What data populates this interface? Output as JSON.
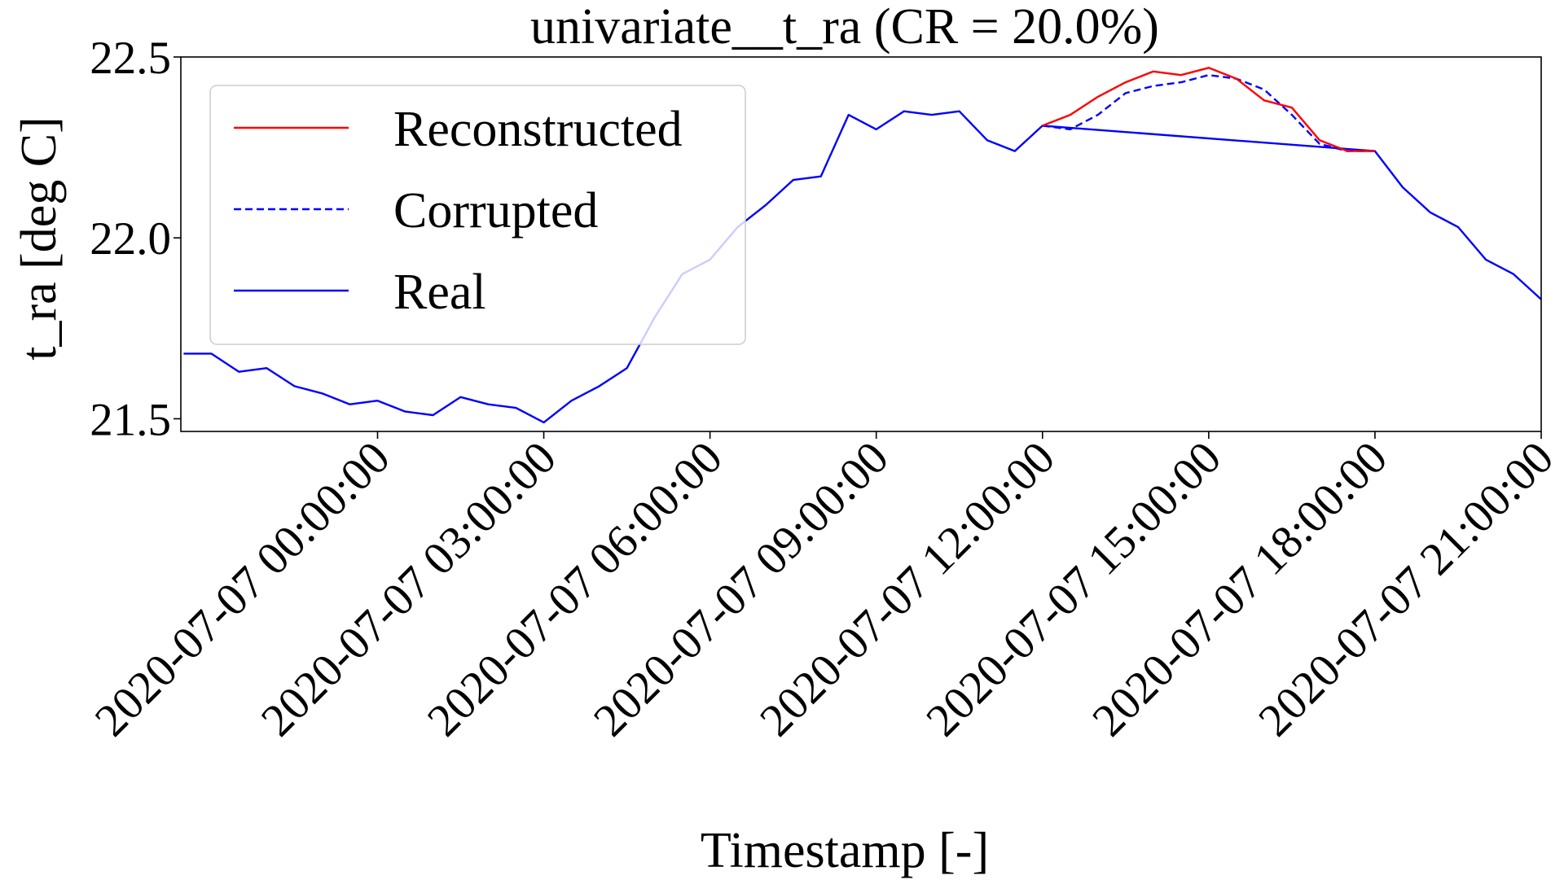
{
  "chart_data": {
    "type": "line",
    "title": "univariate__t_ra  (CR = 20.0%)",
    "xlabel": "Timestamp [-]",
    "ylabel": "t_ra  [deg C]",
    "ylim": [
      21.465,
      22.5
    ],
    "y_ticks": [
      21.5,
      22.0,
      22.5
    ],
    "y_tick_labels": [
      "21.5",
      "22.0",
      "22.5"
    ],
    "x_ticks": [
      0,
      3,
      6,
      9,
      12,
      15,
      18,
      21
    ],
    "x_tick_labels": [
      "2020-07-07 00:00:00",
      "2020-07-07 03:00:00",
      "2020-07-07 06:00:00",
      "2020-07-07 09:00:00",
      "2020-07-07 12:00:00",
      "2020-07-07 15:00:00",
      "2020-07-07 18:00:00",
      "2020-07-07 21:00:00"
    ],
    "x_unit": "hours since 2020-07-07 00:00:00",
    "xlim": [
      -3.55,
      21.0
    ],
    "grid": false,
    "legend_position": "top-left",
    "legend": [
      {
        "name": "Reconstructed",
        "color": "#ff0000",
        "style": "solid"
      },
      {
        "name": "Corrupted",
        "color": "#0000ff",
        "style": "dashed"
      },
      {
        "name": "Real",
        "color": "#0000ff",
        "style": "solid"
      }
    ],
    "series": [
      {
        "name": "Real",
        "color": "#0000ff",
        "style": "solid",
        "x": [
          -3.5,
          -3.0,
          -2.5,
          -2.0,
          -1.5,
          -1.0,
          -0.5,
          0.0,
          0.5,
          1.0,
          1.5,
          2.0,
          2.5,
          3.0,
          3.5,
          4.0,
          4.5,
          5.0,
          5.5,
          6.0,
          6.5,
          7.0,
          7.5,
          8.0,
          8.5,
          9.0,
          9.5,
          10.0,
          10.5,
          11.0,
          11.5,
          12.0,
          18.0,
          18.5,
          19.0,
          19.5,
          20.0,
          20.5,
          21.0
        ],
        "values": [
          21.68,
          21.68,
          21.63,
          21.64,
          21.59,
          21.57,
          21.54,
          21.55,
          21.52,
          21.51,
          21.56,
          21.54,
          21.53,
          21.49,
          21.55,
          21.59,
          21.64,
          21.78,
          21.9,
          21.94,
          22.03,
          22.09,
          22.16,
          22.17,
          22.34,
          22.3,
          22.35,
          22.34,
          22.35,
          22.27,
          22.24,
          22.31,
          22.24,
          22.14,
          22.07,
          22.03,
          21.94,
          21.9,
          21.83
        ]
      },
      {
        "name": "Corrupted",
        "color": "#0000ff",
        "style": "dashed",
        "x": [
          12.0,
          12.5,
          13.0,
          13.5,
          14.0,
          14.5,
          15.0,
          15.5,
          16.0,
          16.5,
          17.0,
          17.5,
          18.0
        ],
        "values": [
          22.31,
          22.3,
          22.34,
          22.4,
          22.42,
          22.43,
          22.45,
          22.44,
          22.41,
          22.34,
          22.26,
          22.24,
          22.24
        ]
      },
      {
        "name": "Reconstructed",
        "color": "#ff0000",
        "style": "solid",
        "x": [
          12.0,
          12.5,
          13.0,
          13.5,
          14.0,
          14.5,
          15.0,
          15.5,
          16.0,
          16.5,
          17.0,
          17.5,
          18.0
        ],
        "values": [
          22.31,
          22.34,
          22.39,
          22.43,
          22.46,
          22.45,
          22.47,
          22.44,
          22.38,
          22.36,
          22.27,
          22.24,
          22.24
        ]
      }
    ]
  }
}
